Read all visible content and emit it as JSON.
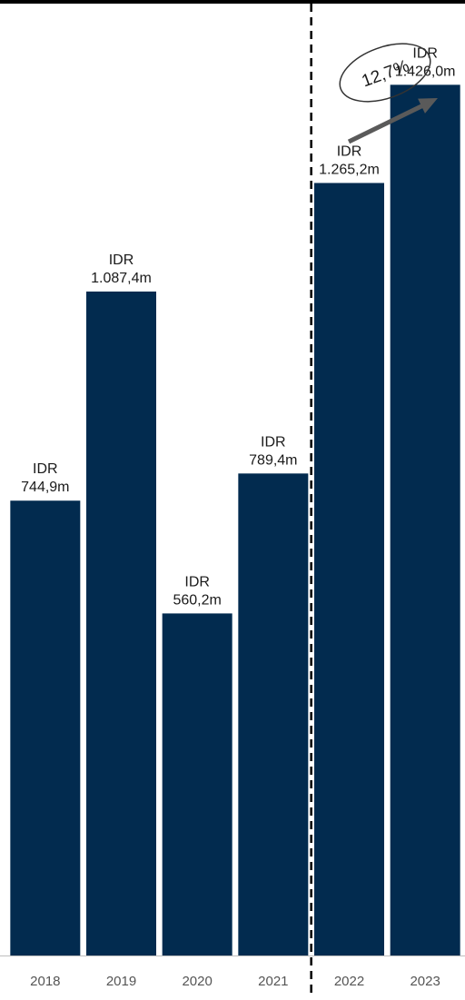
{
  "chart_data": {
    "type": "bar",
    "categories": [
      "2018",
      "2019",
      "2020",
      "2021",
      "2022",
      "2023"
    ],
    "values": [
      744.9,
      1087.4,
      560.2,
      789.4,
      1265.2,
      1426.0
    ],
    "value_labels": [
      [
        "IDR",
        "744,9m"
      ],
      [
        "IDR",
        "1.087,4m"
      ],
      [
        "IDR",
        "560,2m"
      ],
      [
        "IDR",
        "789,4m"
      ],
      [
        "IDR",
        "1.265,2m"
      ],
      [
        "IDR",
        "1.426,0m"
      ]
    ],
    "ylim": [
      0,
      1550
    ],
    "title": "",
    "xlabel": "",
    "ylabel": "",
    "grid": false,
    "divider_between": [
      "2021",
      "2022"
    ],
    "annotation": {
      "text": "12,7%",
      "shape": "ellipse",
      "arrow": "up-right"
    },
    "colors": {
      "bar": "#022b4f",
      "divider": "#000000",
      "arrow": "#5a5a5a",
      "axis": "#bfbfbf",
      "top_rule": "#000000"
    }
  }
}
